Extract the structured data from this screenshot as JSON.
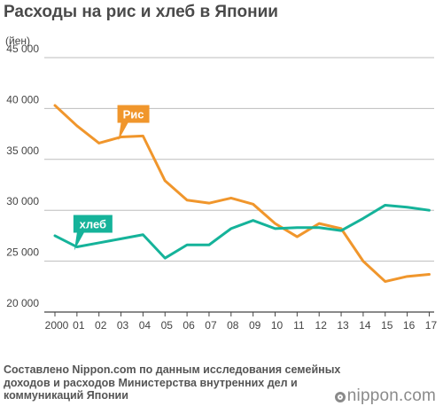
{
  "title": "Расходы на рис и хлеб в Японии",
  "source": "Составлено Nippon.com по данным исследования семейных доходов и расходов Министерства внутренних дел и коммуникаций Японии",
  "brand": "nippon.com",
  "chart_data": {
    "type": "line",
    "unit": "(йен)",
    "categories": [
      "2000",
      "01",
      "02",
      "03",
      "04",
      "05",
      "06",
      "07",
      "08",
      "09",
      "10",
      "11",
      "12",
      "13",
      "14",
      "15",
      "16",
      "17"
    ],
    "ylim": [
      20000,
      45000
    ],
    "yticks": [
      20000,
      25000,
      30000,
      35000,
      40000,
      45000
    ],
    "ytick_labels": [
      "20 000",
      "25 000",
      "30 000",
      "35 000",
      "40 000",
      "45 000"
    ],
    "grid": true,
    "series": [
      {
        "name": "Рис",
        "color": "#f0962c",
        "values": [
          40300,
          38300,
          36600,
          37200,
          37300,
          32900,
          31000,
          30700,
          31200,
          30600,
          28700,
          27400,
          28700,
          28200,
          25000,
          23000,
          23500,
          23700
        ]
      },
      {
        "name": "хлеб",
        "color": "#15b39a",
        "values": [
          27500,
          26400,
          26800,
          27200,
          27600,
          25300,
          26600,
          26600,
          28200,
          29000,
          28200,
          28300,
          28300,
          28000,
          29200,
          30500,
          30300,
          30000
        ]
      }
    ]
  }
}
